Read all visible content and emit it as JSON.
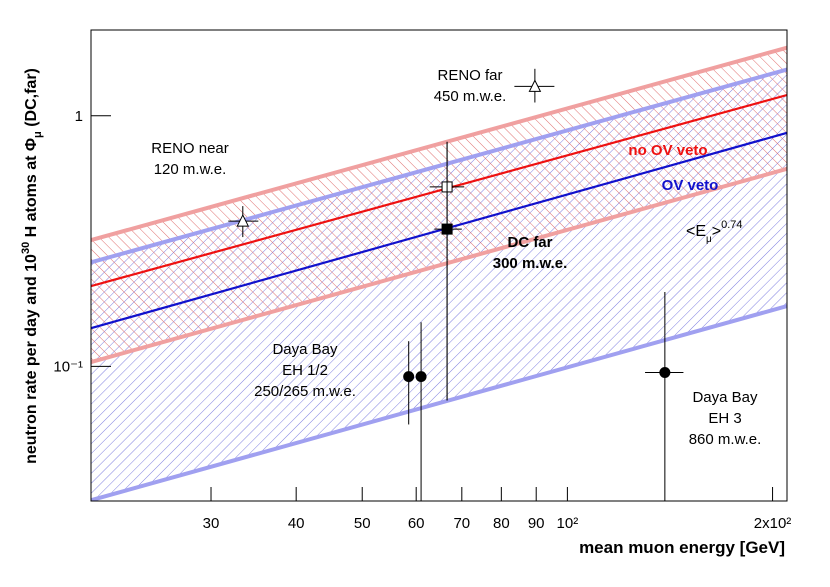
{
  "chart_data": {
    "type": "scatter",
    "xlabel": "mean muon energy [GeV]",
    "ylabel_parts": [
      "neutron rate per day and 10",
      "30",
      " H atoms at Φ",
      "μ",
      " (DC,far)"
    ],
    "log_x": true,
    "log_y": true,
    "xlim": [
      20,
      210
    ],
    "ylim": [
      0.029,
      2.2
    ],
    "xticks": [
      30,
      40,
      50,
      60,
      70,
      80,
      90,
      {
        "value": 100,
        "label": "10²"
      },
      {
        "value": 200,
        "label": "2x10²"
      }
    ],
    "yticks": [
      {
        "value": 0.1,
        "label": "10⁻¹"
      },
      1
    ],
    "series": [
      {
        "color": "#f0a0a0",
        "x": [
          20,
          210
        ],
        "values": [
          0.319,
          1.87
        ]
      },
      {
        "color": "#a0a0f0",
        "x": [
          20,
          210
        ],
        "values": [
          0.26,
          1.53
        ]
      },
      {
        "name": "no OV veto",
        "color": "#ee1111",
        "x": [
          20,
          210
        ],
        "values": [
          0.209,
          1.21
        ]
      },
      {
        "name": "OV veto",
        "color": "#1111cc",
        "x": [
          20,
          210
        ],
        "values": [
          0.142,
          0.855
        ]
      },
      {
        "color": "#f0a0a0",
        "x": [
          20,
          210
        ],
        "values": [
          0.104,
          0.614
        ]
      },
      {
        "color": "#a0a0f0",
        "x": [
          20,
          210
        ],
        "values": [
          0.0292,
          0.174
        ]
      }
    ],
    "points": [
      {
        "marker": "open-triangle",
        "x": 33.4,
        "y": 0.38,
        "xerr": [
          31.8,
          35.2
        ],
        "yerr": [
          0.328,
          0.436
        ]
      },
      {
        "marker": "open-triangle",
        "x": 89.6,
        "y": 1.31,
        "xerr": [
          83.6,
          95.7
        ],
        "yerr": [
          1.13,
          1.54
        ]
      },
      {
        "marker": "open-square",
        "x": 66.6,
        "y": 0.52,
        "xerr": [
          62.8,
          70.5
        ],
        "yerr": [
          0.073,
          0.787
        ]
      },
      {
        "marker": "filled-square",
        "x": 66.6,
        "y": 0.353,
        "xerr": [
          63.8,
          70.0
        ],
        "yerr": [
          0.073,
          0.787
        ]
      },
      {
        "marker": "filled-circle",
        "x": 58.5,
        "y": 0.091,
        "yerr": [
          0.0586,
          0.126
        ]
      },
      {
        "marker": "filled-circle",
        "x": 61,
        "y": 0.091,
        "yerr": [
          0.029,
          0.15
        ]
      },
      {
        "marker": "filled-circle",
        "x": 139,
        "y": 0.0945,
        "xerr": [
          130,
          148
        ],
        "yerr": [
          0.029,
          0.198
        ]
      }
    ],
    "annotations": [
      {
        "lines": [
          "RENO far",
          "450 m.w.e."
        ]
      },
      {
        "lines": [
          "RENO near",
          "120 m.w.e."
        ]
      },
      {
        "lines": [
          "no OV veto"
        ]
      },
      {
        "lines": [
          "OV veto"
        ]
      },
      {
        "lines": [
          "DC far",
          "300 m.w.e."
        ]
      },
      {
        "lines": [
          "Daya Bay",
          "EH 1/2",
          "250/265 m.w.e."
        ]
      },
      {
        "lines": [
          "Daya Bay",
          "EH 3",
          "860 m.w.e."
        ]
      },
      {
        "parts": [
          "<E",
          "μ",
          ">",
          "0.74"
        ]
      }
    ]
  }
}
